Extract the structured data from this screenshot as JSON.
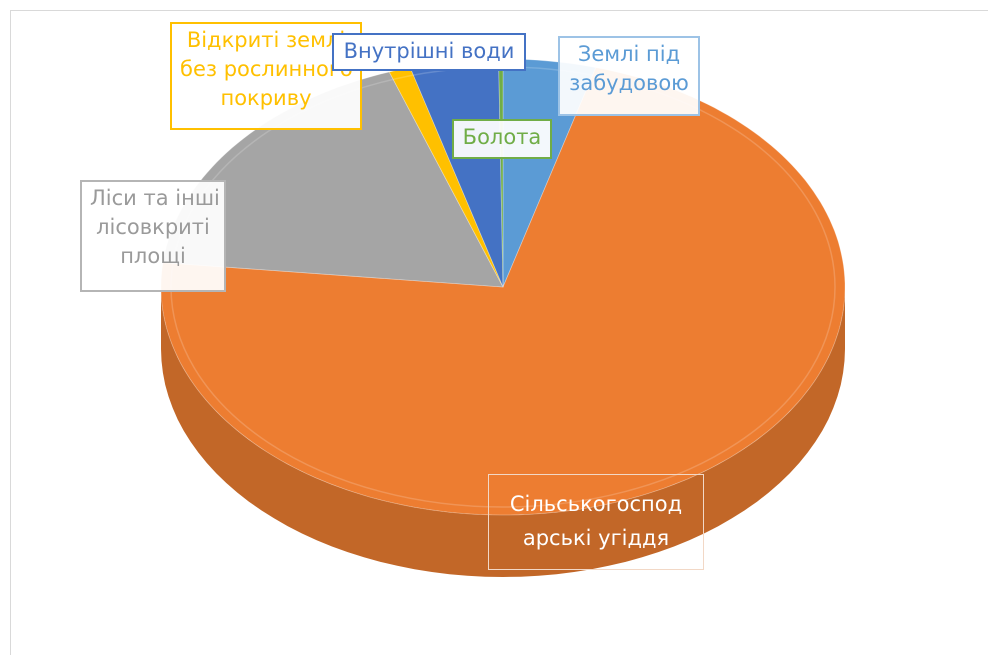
{
  "chart_data": {
    "type": "pie",
    "title": "",
    "categories": [
      "Землі під забудовою",
      "Сільськогосподарські угіддя",
      "Ліси та інші лісовкриті площі",
      "Відкриті землі без рослинного покриву",
      "Внутрішні води",
      "Болота"
    ],
    "values": [
      4.3,
      71.1,
      17.6,
      1.0,
      4.1,
      0.2
    ],
    "colors": [
      "#5b9bd5",
      "#ed7d31",
      "#a5a5a5",
      "#ffc000",
      "#4472c4",
      "#70ad47"
    ],
    "labels": [
      {
        "lines": [
          "Землі під",
          "забудовою"
        ],
        "color": "#5b9bd5"
      },
      {
        "lines": [
          "Сільськогоспод",
          "арські угіддя"
        ],
        "color": "#ed7d31"
      },
      {
        "lines": [
          "Ліси та інші",
          "лісовкриті",
          "площі"
        ],
        "color": "#a5a5a5"
      },
      {
        "lines": [
          "Відкриті землі",
          "без рослинного",
          "покриву"
        ],
        "color": "#ffc000"
      },
      {
        "lines": [
          "Внутрішні води"
        ],
        "color": "#4472c4"
      },
      {
        "lines": [
          "Болота"
        ],
        "color": "#70ad47"
      }
    ],
    "legend": "none"
  }
}
